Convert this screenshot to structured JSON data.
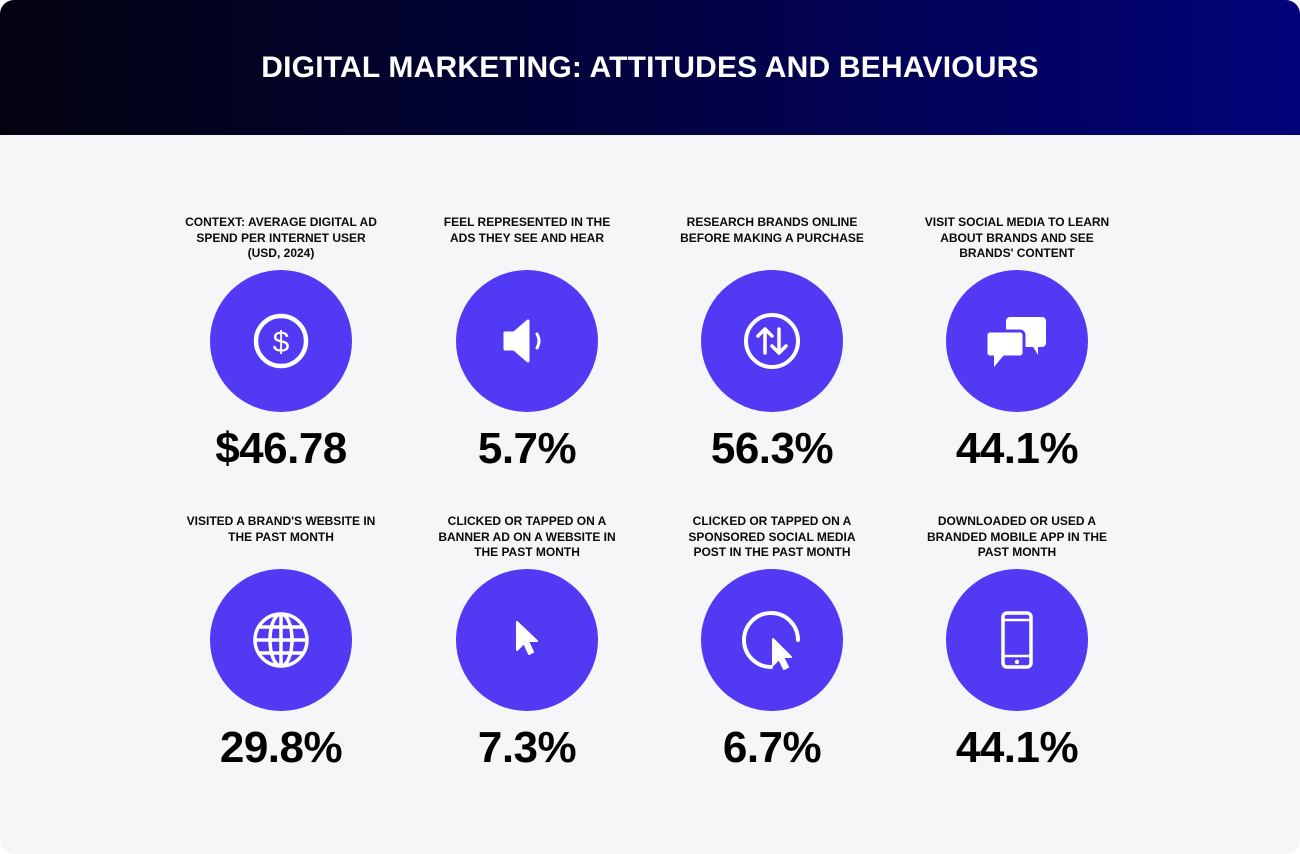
{
  "header": {
    "title": "DIGITAL MARKETING: ATTITUDES AND BEHAVIOURS"
  },
  "colors": {
    "accent": "#5239f3",
    "header_start": "#02020f",
    "header_end": "#03037a"
  },
  "stats": [
    {
      "label": "CONTEXT: AVERAGE DIGITAL AD SPEND PER INTERNET USER (USD, 2024)",
      "value": "$46.78",
      "icon": "dollar-coin-icon"
    },
    {
      "label": "FEEL REPRESENTED IN THE ADS THEY SEE AND HEAR",
      "value": "5.7%",
      "icon": "speaker-icon"
    },
    {
      "label": "RESEARCH BRANDS ONLINE BEFORE MAKING A PURCHASE",
      "value": "56.3%",
      "icon": "up-down-arrows-icon"
    },
    {
      "label": "VISIT SOCIAL MEDIA TO LEARN ABOUT BRANDS AND SEE BRANDS' CONTENT",
      "value": "44.1%",
      "icon": "chat-bubbles-icon"
    },
    {
      "label": "VISITED A BRAND'S WEBSITE IN THE PAST MONTH",
      "value": "29.8%",
      "icon": "globe-icon"
    },
    {
      "label": "CLICKED OR TAPPED ON A BANNER AD ON A WEBSITE IN THE PAST MONTH",
      "value": "7.3%",
      "icon": "cursor-icon"
    },
    {
      "label": "CLICKED OR TAPPED ON A SPONSORED SOCIAL MEDIA POST IN THE PAST MONTH",
      "value": "6.7%",
      "icon": "cursor-click-icon"
    },
    {
      "label": "DOWNLOADED OR USED A BRANDED MOBILE APP IN THE PAST MONTH",
      "value": "44.1%",
      "icon": "mobile-phone-icon"
    }
  ]
}
